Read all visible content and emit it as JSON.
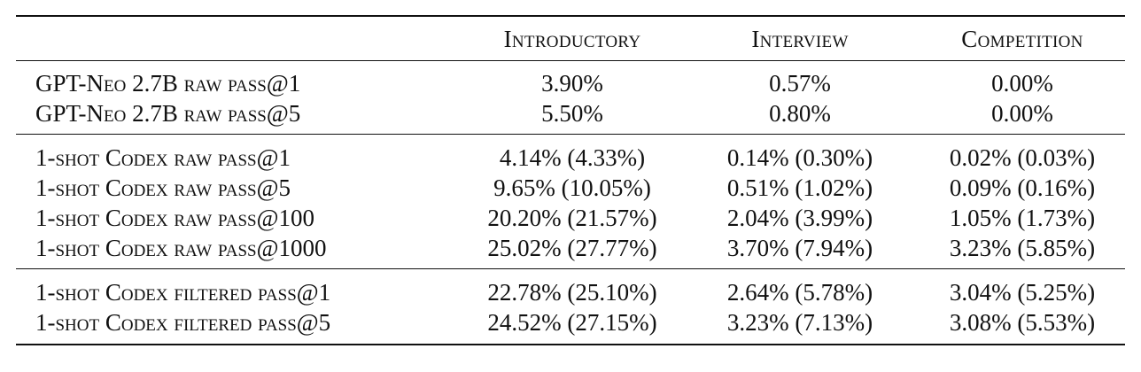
{
  "table": {
    "headers": [
      "Introductory",
      "Interview",
      "Competition"
    ],
    "groups": [
      {
        "rows": [
          {
            "label": "GPT-Neo 2.7B raw pass@1",
            "values": [
              "3.90%",
              "0.57%",
              "0.00%"
            ]
          },
          {
            "label": "GPT-Neo 2.7B raw pass@5",
            "values": [
              "5.50%",
              "0.80%",
              "0.00%"
            ]
          }
        ]
      },
      {
        "rows": [
          {
            "label": "1-shot Codex raw pass@1",
            "values": [
              "4.14% (4.33%)",
              "0.14% (0.30%)",
              "0.02% (0.03%)"
            ]
          },
          {
            "label": "1-shot Codex raw pass@5",
            "values": [
              "9.65% (10.05%)",
              "0.51% (1.02%)",
              "0.09% (0.16%)"
            ]
          },
          {
            "label": "1-shot Codex raw pass@100",
            "values": [
              "20.20% (21.57%)",
              "2.04% (3.99%)",
              "1.05% (1.73%)"
            ]
          },
          {
            "label": "1-shot Codex raw pass@1000",
            "values": [
              "25.02% (27.77%)",
              "3.70% (7.94%)",
              "3.23% (5.85%)"
            ]
          }
        ]
      },
      {
        "rows": [
          {
            "label": "1-shot Codex filtered pass@1",
            "values": [
              "22.78% (25.10%)",
              "2.64% (5.78%)",
              "3.04% (5.25%)"
            ]
          },
          {
            "label": "1-shot Codex filtered pass@5",
            "values": [
              "24.52% (27.15%)",
              "3.23% (7.13%)",
              "3.08% (5.53%)"
            ]
          }
        ]
      }
    ]
  }
}
